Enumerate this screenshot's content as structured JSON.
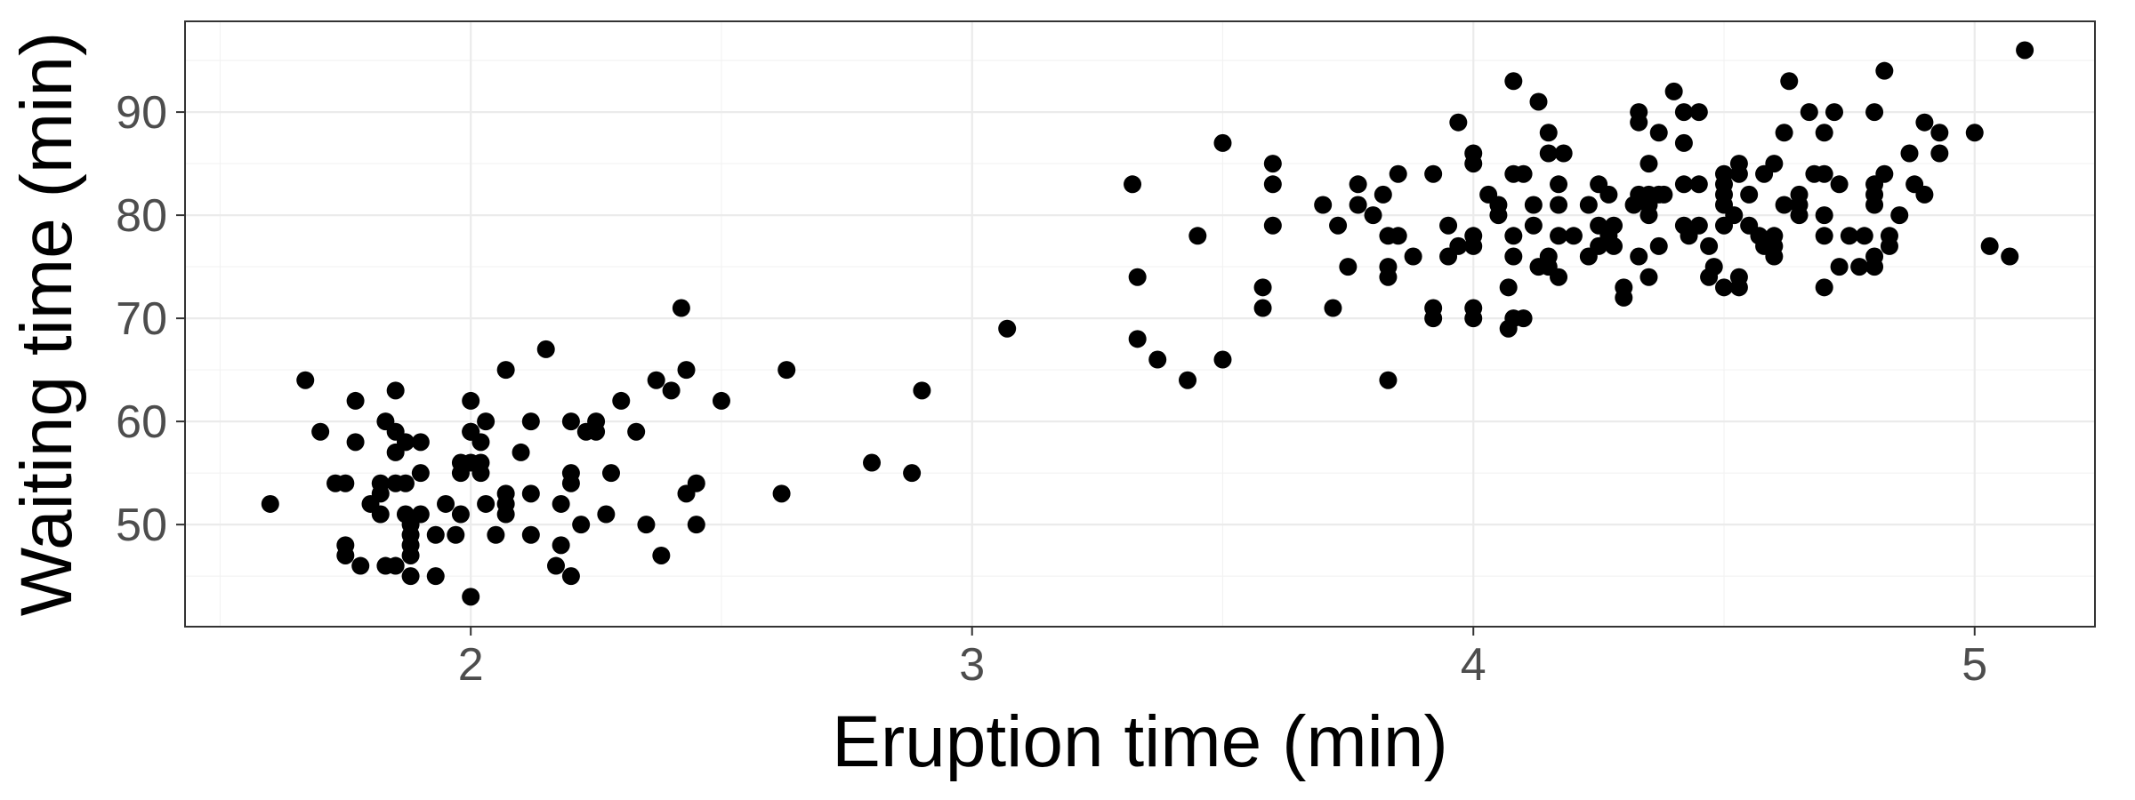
{
  "chart_data": {
    "type": "scatter",
    "xlabel": "Eruption time (min)",
    "ylabel": "Waiting time (min)",
    "xlim": [
      1.43,
      5.24
    ],
    "ylim": [
      40.1,
      98.8
    ],
    "x_ticks": [
      2,
      3,
      4,
      5
    ],
    "y_ticks": [
      50,
      60,
      70,
      80,
      90
    ],
    "x_tick_labels": [
      "2",
      "3",
      "4",
      "5"
    ],
    "y_tick_labels": [
      "50",
      "60",
      "70",
      "80",
      "90"
    ],
    "x_minor_ticks": [
      1.5,
      2.5,
      3.5,
      4.5
    ],
    "y_minor_ticks": [
      45,
      55,
      65,
      75,
      85,
      95
    ],
    "grid": true,
    "theme": "bw",
    "point_color": "#000000",
    "series": [
      {
        "points": [
          [
            1.6,
            52
          ],
          [
            1.67,
            64
          ],
          [
            1.7,
            59
          ],
          [
            1.73,
            54
          ],
          [
            1.75,
            54
          ],
          [
            1.75,
            48
          ],
          [
            1.75,
            47
          ],
          [
            1.77,
            62
          ],
          [
            1.77,
            58
          ],
          [
            1.78,
            46
          ],
          [
            1.8,
            52
          ],
          [
            1.82,
            54
          ],
          [
            1.82,
            53
          ],
          [
            1.82,
            51
          ],
          [
            1.83,
            46
          ],
          [
            1.83,
            60
          ],
          [
            1.85,
            46
          ],
          [
            1.85,
            63
          ],
          [
            1.85,
            59
          ],
          [
            1.85,
            57
          ],
          [
            1.85,
            54
          ],
          [
            1.87,
            58
          ],
          [
            1.87,
            54
          ],
          [
            1.87,
            51
          ],
          [
            1.88,
            50
          ],
          [
            1.88,
            49
          ],
          [
            1.88,
            48
          ],
          [
            1.88,
            47
          ],
          [
            1.88,
            45
          ],
          [
            1.9,
            58
          ],
          [
            1.9,
            55
          ],
          [
            1.9,
            51
          ],
          [
            1.93,
            49
          ],
          [
            1.93,
            45
          ],
          [
            1.95,
            52
          ],
          [
            1.97,
            49
          ],
          [
            1.98,
            51
          ],
          [
            1.98,
            56
          ],
          [
            1.98,
            55
          ],
          [
            2.0,
            62
          ],
          [
            2.0,
            59
          ],
          [
            2.0,
            56
          ],
          [
            2.0,
            43
          ],
          [
            2.0,
            59
          ],
          [
            2.02,
            58
          ],
          [
            2.02,
            56
          ],
          [
            2.02,
            55
          ],
          [
            2.03,
            60
          ],
          [
            2.03,
            52
          ],
          [
            2.05,
            49
          ],
          [
            2.07,
            51
          ],
          [
            2.07,
            53
          ],
          [
            2.07,
            52
          ],
          [
            2.07,
            65
          ],
          [
            2.1,
            57
          ],
          [
            2.12,
            60
          ],
          [
            2.12,
            53
          ],
          [
            2.12,
            49
          ],
          [
            2.15,
            67
          ],
          [
            2.17,
            46
          ],
          [
            2.18,
            48
          ],
          [
            2.18,
            52
          ],
          [
            2.2,
            55
          ],
          [
            2.2,
            54
          ],
          [
            2.2,
            60
          ],
          [
            2.2,
            45
          ],
          [
            2.22,
            50
          ],
          [
            2.23,
            59
          ],
          [
            2.25,
            60
          ],
          [
            2.25,
            59
          ],
          [
            2.27,
            51
          ],
          [
            2.28,
            55
          ],
          [
            2.3,
            62
          ],
          [
            2.33,
            59
          ],
          [
            2.35,
            50
          ],
          [
            2.37,
            64
          ],
          [
            2.38,
            47
          ],
          [
            2.4,
            63
          ],
          [
            2.42,
            71
          ],
          [
            2.43,
            65
          ],
          [
            2.43,
            53
          ],
          [
            2.45,
            54
          ],
          [
            2.45,
            50
          ],
          [
            2.5,
            62
          ],
          [
            2.62,
            53
          ],
          [
            2.63,
            65
          ],
          [
            2.8,
            56
          ],
          [
            2.88,
            55
          ],
          [
            2.9,
            63
          ],
          [
            3.07,
            69
          ],
          [
            3.32,
            83
          ],
          [
            3.33,
            74
          ],
          [
            3.33,
            68
          ],
          [
            3.37,
            66
          ],
          [
            3.43,
            64
          ],
          [
            3.45,
            78
          ],
          [
            3.5,
            87
          ],
          [
            3.5,
            66
          ],
          [
            3.58,
            73
          ],
          [
            3.58,
            71
          ],
          [
            3.6,
            85
          ],
          [
            3.6,
            83
          ],
          [
            3.6,
            79
          ],
          [
            3.7,
            81
          ],
          [
            3.72,
            71
          ],
          [
            3.73,
            79
          ],
          [
            3.75,
            75
          ],
          [
            3.77,
            83
          ],
          [
            3.77,
            81
          ],
          [
            3.8,
            80
          ],
          [
            3.82,
            82
          ],
          [
            3.83,
            78
          ],
          [
            3.83,
            75
          ],
          [
            3.83,
            74
          ],
          [
            3.83,
            64
          ],
          [
            3.85,
            78
          ],
          [
            3.85,
            84
          ],
          [
            3.88,
            76
          ],
          [
            3.92,
            84
          ],
          [
            3.92,
            71
          ],
          [
            3.92,
            70
          ],
          [
            3.95,
            79
          ],
          [
            3.95,
            76
          ],
          [
            3.97,
            89
          ],
          [
            3.97,
            77
          ],
          [
            4.0,
            86
          ],
          [
            4.0,
            85
          ],
          [
            4.0,
            78
          ],
          [
            4.0,
            77
          ],
          [
            4.0,
            71
          ],
          [
            4.0,
            70
          ],
          [
            4.03,
            82
          ],
          [
            4.05,
            81
          ],
          [
            4.05,
            80
          ],
          [
            4.07,
            73
          ],
          [
            4.07,
            69
          ],
          [
            4.08,
            93
          ],
          [
            4.08,
            84
          ],
          [
            4.08,
            78
          ],
          [
            4.08,
            76
          ],
          [
            4.08,
            70
          ],
          [
            4.1,
            84
          ],
          [
            4.1,
            70
          ],
          [
            4.12,
            81
          ],
          [
            4.12,
            79
          ],
          [
            4.13,
            91
          ],
          [
            4.13,
            75
          ],
          [
            4.15,
            88
          ],
          [
            4.15,
            86
          ],
          [
            4.15,
            76
          ],
          [
            4.15,
            75
          ],
          [
            4.17,
            83
          ],
          [
            4.17,
            81
          ],
          [
            4.17,
            78
          ],
          [
            4.17,
            74
          ],
          [
            4.18,
            86
          ],
          [
            4.2,
            78
          ],
          [
            4.23,
            81
          ],
          [
            4.23,
            76
          ],
          [
            4.25,
            83
          ],
          [
            4.25,
            79
          ],
          [
            4.25,
            77
          ],
          [
            4.27,
            82
          ],
          [
            4.27,
            78
          ],
          [
            4.28,
            79
          ],
          [
            4.28,
            77
          ],
          [
            4.3,
            73
          ],
          [
            4.3,
            72
          ],
          [
            4.32,
            81
          ],
          [
            4.33,
            90
          ],
          [
            4.33,
            89
          ],
          [
            4.33,
            82
          ],
          [
            4.33,
            76
          ],
          [
            4.35,
            85
          ],
          [
            4.35,
            82
          ],
          [
            4.35,
            81
          ],
          [
            4.35,
            80
          ],
          [
            4.35,
            74
          ],
          [
            4.37,
            88
          ],
          [
            4.37,
            82
          ],
          [
            4.37,
            77
          ],
          [
            4.38,
            82
          ],
          [
            4.4,
            92
          ],
          [
            4.42,
            90
          ],
          [
            4.42,
            87
          ],
          [
            4.42,
            83
          ],
          [
            4.42,
            79
          ],
          [
            4.43,
            78
          ],
          [
            4.45,
            90
          ],
          [
            4.45,
            83
          ],
          [
            4.45,
            79
          ],
          [
            4.47,
            77
          ],
          [
            4.47,
            74
          ],
          [
            4.48,
            75
          ],
          [
            4.5,
            84
          ],
          [
            4.5,
            83
          ],
          [
            4.5,
            82
          ],
          [
            4.5,
            81
          ],
          [
            4.5,
            79
          ],
          [
            4.5,
            73
          ],
          [
            4.52,
            80
          ],
          [
            4.53,
            85
          ],
          [
            4.53,
            84
          ],
          [
            4.53,
            74
          ],
          [
            4.53,
            73
          ],
          [
            4.55,
            82
          ],
          [
            4.55,
            79
          ],
          [
            4.57,
            78
          ],
          [
            4.58,
            84
          ],
          [
            4.58,
            77
          ],
          [
            4.6,
            85
          ],
          [
            4.6,
            78
          ],
          [
            4.6,
            77
          ],
          [
            4.6,
            76
          ],
          [
            4.62,
            88
          ],
          [
            4.62,
            81
          ],
          [
            4.63,
            93
          ],
          [
            4.65,
            82
          ],
          [
            4.65,
            81
          ],
          [
            4.65,
            80
          ],
          [
            4.67,
            90
          ],
          [
            4.68,
            84
          ],
          [
            4.7,
            84
          ],
          [
            4.7,
            78
          ],
          [
            4.7,
            88
          ],
          [
            4.7,
            80
          ],
          [
            4.7,
            73
          ],
          [
            4.72,
            90
          ],
          [
            4.73,
            83
          ],
          [
            4.73,
            75
          ],
          [
            4.75,
            78
          ],
          [
            4.77,
            75
          ],
          [
            4.78,
            78
          ],
          [
            4.8,
            90
          ],
          [
            4.8,
            83
          ],
          [
            4.8,
            82
          ],
          [
            4.8,
            81
          ],
          [
            4.8,
            76
          ],
          [
            4.8,
            75
          ],
          [
            4.82,
            84
          ],
          [
            4.82,
            94
          ],
          [
            4.83,
            78
          ],
          [
            4.83,
            77
          ],
          [
            4.85,
            80
          ],
          [
            4.87,
            86
          ],
          [
            4.88,
            83
          ],
          [
            4.9,
            89
          ],
          [
            4.9,
            82
          ],
          [
            4.93,
            88
          ],
          [
            4.93,
            86
          ],
          [
            5.0,
            88
          ],
          [
            5.03,
            77
          ],
          [
            5.07,
            76
          ],
          [
            5.1,
            96
          ]
        ]
      }
    ]
  }
}
